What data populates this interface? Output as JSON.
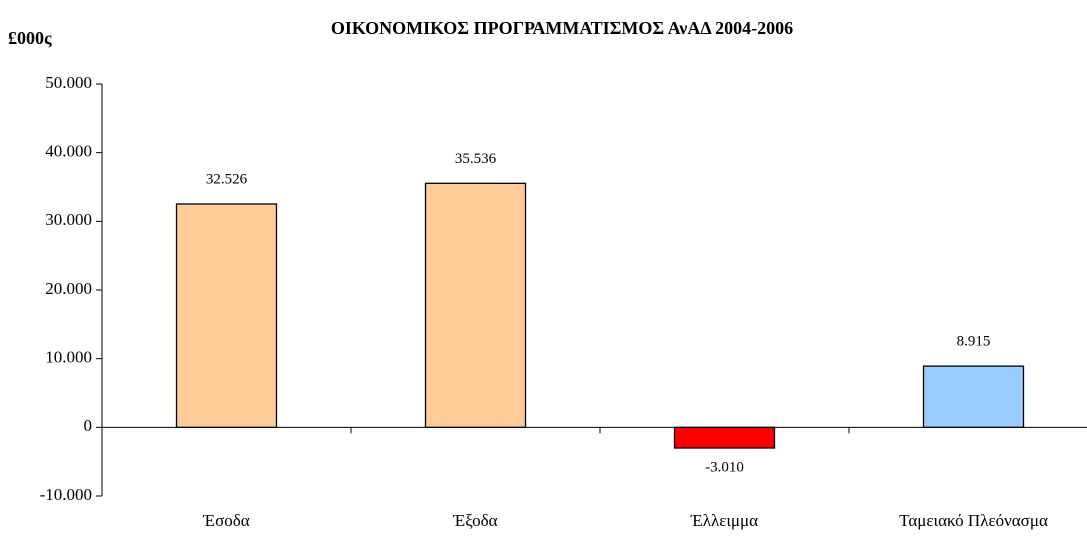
{
  "chart_data": {
    "type": "bar",
    "title": "ΟΙΚΟΝΟΜΙΚΟΣ ΠΡΟΓΡΑΜΜΑΤΙΣΜΟΣ ΑνΑΔ 2004-2006",
    "y_label": "£000ς",
    "categories": [
      "Έσοδα",
      "Έξοδα",
      "Έλλειμμα",
      "Ταμειακό Πλεόνασμα"
    ],
    "values": [
      32526,
      35536,
      -3010,
      8915
    ],
    "value_labels": [
      "32.526",
      "35.536",
      "-3.010",
      "8.915"
    ],
    "colors": [
      "#ffcc99",
      "#ffcc99",
      "#ff0000",
      "#99ccff"
    ],
    "ylim": [
      -10000,
      50000
    ],
    "yticks": [
      {
        "value": -10000,
        "label": "-10.000"
      },
      0,
      {
        "value": 10000,
        "label": "10.000"
      },
      {
        "value": 20000,
        "label": "20.000"
      },
      {
        "value": 30000,
        "label": "30.000"
      },
      {
        "value": 40000,
        "label": "40.000"
      },
      {
        "value": 50000,
        "label": "50.000"
      }
    ],
    "grid": false
  }
}
